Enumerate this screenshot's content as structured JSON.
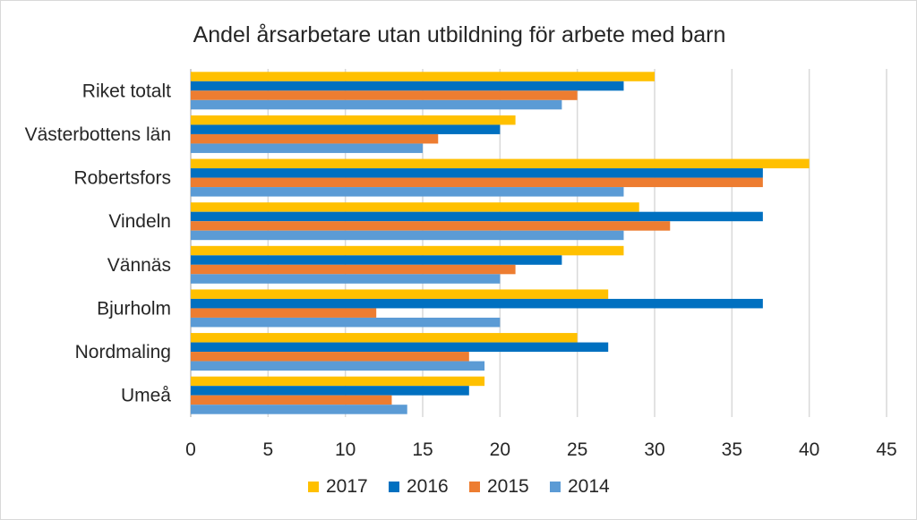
{
  "chart_data": {
    "type": "bar",
    "orientation": "horizontal",
    "title": "Andel årsarbetare utan utbildning för arbete med barn",
    "xlabel": "",
    "ylabel": "",
    "xlim": [
      0,
      45
    ],
    "xticks": [
      0,
      5,
      10,
      15,
      20,
      25,
      30,
      35,
      40,
      45
    ],
    "grid": true,
    "legend_position": "bottom",
    "categories": [
      "Riket totalt",
      "Västerbottens län",
      "Robertsfors",
      "Vindeln",
      "Vännäs",
      "Bjurholm",
      "Nordmaling",
      "Umeå"
    ],
    "series": [
      {
        "name": "2017",
        "color": "#FFC000",
        "values": [
          30,
          21,
          40,
          29,
          28,
          27,
          25,
          19
        ]
      },
      {
        "name": "2016",
        "color": "#0070C0",
        "values": [
          28,
          20,
          37,
          37,
          24,
          37,
          27,
          18
        ]
      },
      {
        "name": "2015",
        "color": "#ED7D31",
        "values": [
          25,
          16,
          37,
          31,
          21,
          12,
          18,
          13
        ]
      },
      {
        "name": "2014",
        "color": "#5B9BD5",
        "values": [
          24,
          15,
          28,
          28,
          20,
          20,
          19,
          14
        ]
      }
    ]
  }
}
